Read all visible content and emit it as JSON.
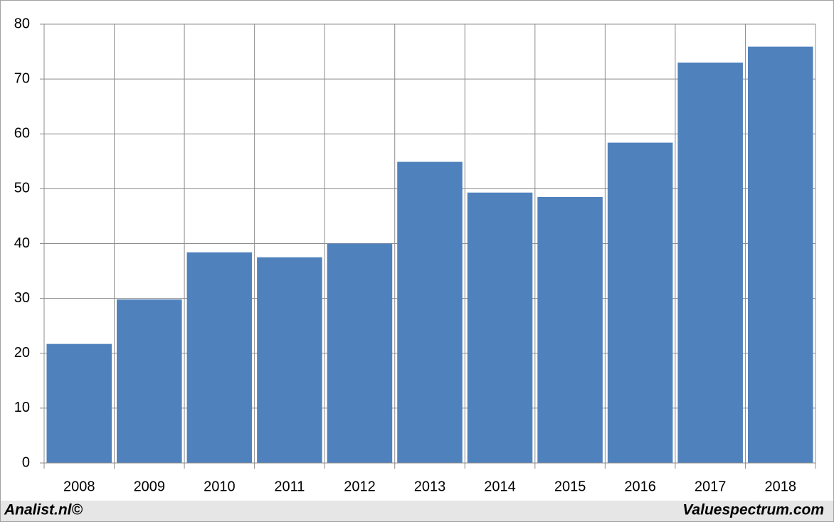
{
  "chart_data": {
    "type": "bar",
    "categories": [
      "2008",
      "2009",
      "2010",
      "2011",
      "2012",
      "2013",
      "2014",
      "2015",
      "2016",
      "2017",
      "2018"
    ],
    "values": [
      21.7,
      29.8,
      38.4,
      37.5,
      40.0,
      54.9,
      49.3,
      48.5,
      58.4,
      73.0,
      75.9
    ],
    "color": "#4f81bd",
    "ylim": [
      0,
      80
    ],
    "yticks": [
      0,
      10,
      20,
      30,
      40,
      50,
      60,
      70,
      80
    ],
    "grid": true,
    "annotations": [
      "Analist.nl©",
      "Valuespectrum.com"
    ]
  }
}
